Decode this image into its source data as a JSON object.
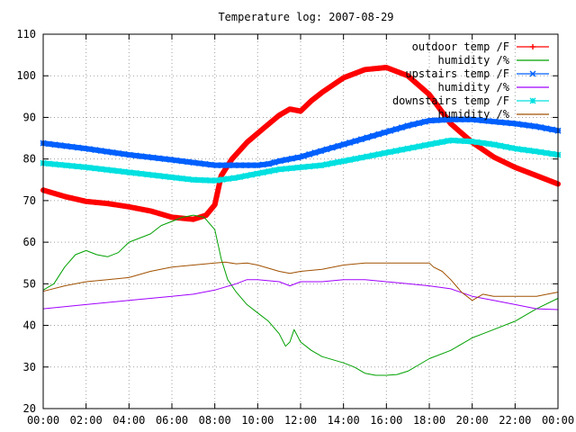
{
  "chart_data": {
    "type": "line",
    "title": "Temperature log: 2007-08-29",
    "xlabel": "",
    "ylabel": "",
    "xlim": [
      0,
      24
    ],
    "ylim": [
      20,
      110
    ],
    "x_ticks": [
      "00:00",
      "02:00",
      "04:00",
      "06:00",
      "08:00",
      "10:00",
      "12:00",
      "14:00",
      "16:00",
      "18:00",
      "20:00",
      "22:00",
      "00:00"
    ],
    "y_ticks": [
      "20",
      "30",
      "40",
      "50",
      "60",
      "70",
      "80",
      "90",
      "100",
      "110"
    ],
    "grid": true,
    "legend_position": "top-right",
    "series": [
      {
        "name": "outdoor temp /F",
        "color": "#ff0000",
        "marker": "plus",
        "points": [
          [
            0,
            72.5
          ],
          [
            1,
            71
          ],
          [
            2,
            69.8
          ],
          [
            3,
            69.3
          ],
          [
            4,
            68.5
          ],
          [
            5,
            67.5
          ],
          [
            6,
            66
          ],
          [
            7,
            65.5
          ],
          [
            7.6,
            66.5
          ],
          [
            8,
            69
          ],
          [
            8.3,
            76
          ],
          [
            8.8,
            80
          ],
          [
            9.5,
            84
          ],
          [
            10.3,
            87.5
          ],
          [
            11,
            90.5
          ],
          [
            11.5,
            92
          ],
          [
            12,
            91.5
          ],
          [
            12.5,
            94
          ],
          [
            13,
            96
          ],
          [
            14,
            99.5
          ],
          [
            15,
            101.5
          ],
          [
            16,
            102
          ],
          [
            17,
            100
          ],
          [
            18,
            95.5
          ],
          [
            19,
            88.5
          ],
          [
            20,
            84
          ],
          [
            21,
            80.5
          ],
          [
            22,
            78
          ],
          [
            23,
            76
          ],
          [
            24,
            74
          ]
        ]
      },
      {
        "name": "humidity /%",
        "color": "#00a000",
        "marker": "none",
        "points": [
          [
            0,
            48.5
          ],
          [
            0.5,
            50
          ],
          [
            1,
            54
          ],
          [
            1.5,
            57
          ],
          [
            2,
            58
          ],
          [
            2.5,
            57
          ],
          [
            3,
            56.5
          ],
          [
            3.5,
            57.5
          ],
          [
            4,
            60
          ],
          [
            4.5,
            61
          ],
          [
            5,
            62
          ],
          [
            5.5,
            64
          ],
          [
            6,
            65
          ],
          [
            6.5,
            66
          ],
          [
            7,
            66.5
          ],
          [
            7.5,
            66
          ],
          [
            8,
            63
          ],
          [
            8.3,
            56
          ],
          [
            8.6,
            51
          ],
          [
            9,
            48
          ],
          [
            9.5,
            45
          ],
          [
            10,
            43
          ],
          [
            10.5,
            41
          ],
          [
            11,
            38
          ],
          [
            11.3,
            35
          ],
          [
            11.5,
            36
          ],
          [
            11.7,
            39
          ],
          [
            12,
            36
          ],
          [
            12.5,
            34
          ],
          [
            13,
            32.5
          ],
          [
            14,
            31
          ],
          [
            14.5,
            30
          ],
          [
            15,
            28.5
          ],
          [
            15.5,
            28
          ],
          [
            16,
            28
          ],
          [
            16.5,
            28.2
          ],
          [
            17,
            29
          ],
          [
            17.5,
            30.5
          ],
          [
            18,
            32
          ],
          [
            19,
            34
          ],
          [
            20,
            37
          ],
          [
            20.5,
            38
          ],
          [
            21,
            39
          ],
          [
            22,
            41
          ],
          [
            23,
            44
          ],
          [
            24,
            46.5
          ]
        ]
      },
      {
        "name": "upstairs temp /F",
        "color": "#0060ff",
        "marker": "x",
        "points": [
          [
            0,
            83.8
          ],
          [
            2,
            82.5
          ],
          [
            4,
            81
          ],
          [
            6,
            79.8
          ],
          [
            8,
            78.5
          ],
          [
            9,
            78.5
          ],
          [
            10,
            78.5
          ],
          [
            10.5,
            78.8
          ],
          [
            11,
            79.5
          ],
          [
            12,
            80.5
          ],
          [
            13,
            82
          ],
          [
            14,
            83.5
          ],
          [
            15,
            85
          ],
          [
            16,
            86.5
          ],
          [
            17,
            88
          ],
          [
            18,
            89.2
          ],
          [
            19,
            89.5
          ],
          [
            20,
            89.5
          ],
          [
            21,
            89
          ],
          [
            22,
            88.5
          ],
          [
            23,
            87.8
          ],
          [
            24,
            86.8
          ]
        ]
      },
      {
        "name": "humidity /%",
        "color": "#a000ff",
        "marker": "none",
        "points": [
          [
            0,
            44
          ],
          [
            2,
            45
          ],
          [
            4,
            46
          ],
          [
            6,
            47
          ],
          [
            7,
            47.5
          ],
          [
            8,
            48.5
          ],
          [
            9,
            50
          ],
          [
            9.5,
            51
          ],
          [
            10,
            51
          ],
          [
            11,
            50.5
          ],
          [
            11.5,
            49.5
          ],
          [
            12,
            50.5
          ],
          [
            13,
            50.5
          ],
          [
            14,
            51
          ],
          [
            15,
            51
          ],
          [
            16,
            50.5
          ],
          [
            17,
            50
          ],
          [
            18,
            49.5
          ],
          [
            19,
            48.8
          ],
          [
            20,
            47
          ],
          [
            21,
            46
          ],
          [
            22,
            45
          ],
          [
            23,
            44
          ],
          [
            24,
            43.8
          ]
        ]
      },
      {
        "name": "downstairs temp /F",
        "color": "#00e0e0",
        "marker": "star",
        "points": [
          [
            0,
            79
          ],
          [
            2,
            78
          ],
          [
            4,
            76.8
          ],
          [
            6,
            75.6
          ],
          [
            7,
            75
          ],
          [
            8,
            74.8
          ],
          [
            9,
            75.5
          ],
          [
            10,
            76.5
          ],
          [
            11,
            77.5
          ],
          [
            12,
            78
          ],
          [
            13,
            78.5
          ],
          [
            14,
            79.5
          ],
          [
            15,
            80.5
          ],
          [
            16,
            81.5
          ],
          [
            17,
            82.5
          ],
          [
            18,
            83.5
          ],
          [
            19,
            84.5
          ],
          [
            20,
            84.2
          ],
          [
            21,
            83.5
          ],
          [
            22,
            82.5
          ],
          [
            23,
            81.8
          ],
          [
            24,
            81
          ]
        ]
      },
      {
        "name": "humidity /%",
        "color": "#a05000",
        "marker": "none",
        "points": [
          [
            0,
            48.2
          ],
          [
            1,
            49.5
          ],
          [
            2,
            50.5
          ],
          [
            3,
            51
          ],
          [
            4,
            51.5
          ],
          [
            5,
            53
          ],
          [
            6,
            54
          ],
          [
            7,
            54.5
          ],
          [
            8,
            55
          ],
          [
            8.5,
            55.2
          ],
          [
            9,
            54.8
          ],
          [
            9.5,
            55
          ],
          [
            10,
            54.5
          ],
          [
            11,
            53
          ],
          [
            11.5,
            52.5
          ],
          [
            12,
            53
          ],
          [
            13,
            53.5
          ],
          [
            14,
            54.5
          ],
          [
            15,
            55
          ],
          [
            16,
            55
          ],
          [
            17,
            55
          ],
          [
            18,
            55
          ],
          [
            18.2,
            54
          ],
          [
            18.6,
            53
          ],
          [
            19,
            51
          ],
          [
            19.5,
            48
          ],
          [
            20,
            46
          ],
          [
            20.5,
            47.5
          ],
          [
            21,
            47
          ],
          [
            22,
            47
          ],
          [
            23,
            47
          ],
          [
            23.5,
            47.5
          ],
          [
            24,
            48
          ]
        ]
      }
    ]
  }
}
